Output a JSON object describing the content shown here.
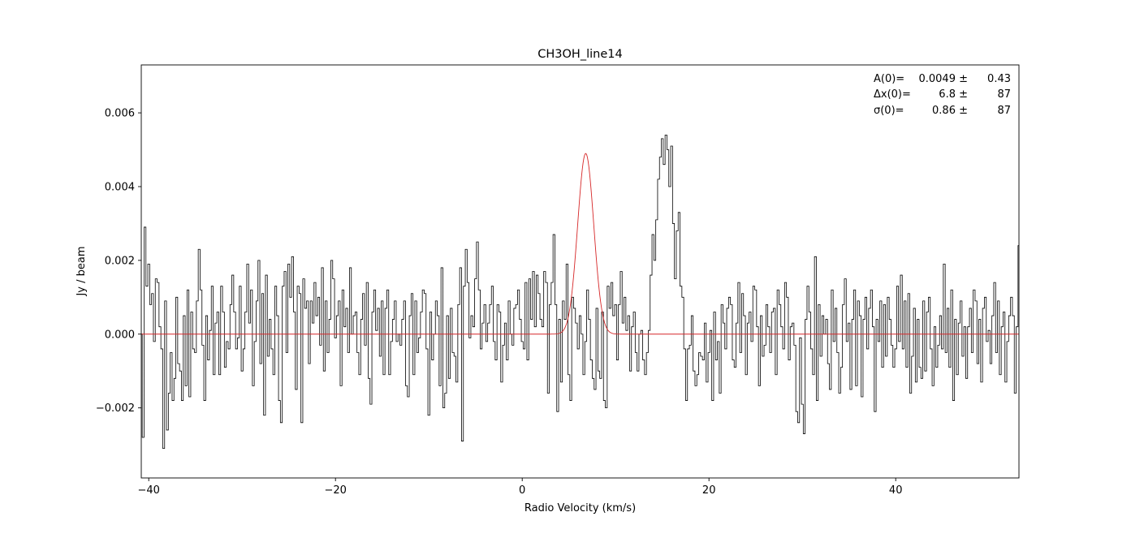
{
  "chart_data": {
    "type": "line",
    "title": "CH3OH_line14",
    "xlabel": "Radio Velocity (km/s)",
    "ylabel": "Jy / beam",
    "xlim": [
      -40.8,
      53.2
    ],
    "ylim": [
      -0.0039,
      0.0073
    ],
    "xticks": [
      -40,
      -20,
      0,
      20,
      40
    ],
    "xtick_labels": [
      "−40",
      "−20",
      "0",
      "20",
      "40"
    ],
    "yticks": [
      -0.002,
      0.0,
      0.002,
      0.004,
      0.006
    ],
    "ytick_labels": [
      "−0.002",
      "0.000",
      "0.002",
      "0.004",
      "0.006"
    ],
    "grid": false,
    "series": [
      {
        "style": "steps-mid",
        "color": "#000000",
        "x_start": -40.8,
        "x_step": 0.2,
        "values": [
          0.0,
          -0.0028,
          0.0029,
          0.0013,
          0.0019,
          0.0008,
          0.0011,
          -0.0002,
          0.0015,
          0.0014,
          0.0002,
          -0.0004,
          -0.0031,
          0.0009,
          -0.0026,
          -0.0016,
          -0.0005,
          -0.0018,
          -0.0012,
          0.001,
          -0.0008,
          -0.001,
          -0.0018,
          0.0005,
          -0.0014,
          0.0012,
          -0.0017,
          0.0006,
          -0.0004,
          -0.0005,
          0.0009,
          0.0023,
          0.0012,
          -0.0003,
          -0.0018,
          0.0005,
          -0.0007,
          0.0001,
          0.0013,
          -0.0011,
          0.0003,
          0.0006,
          -0.0011,
          0.0013,
          0.0006,
          -0.0009,
          -0.0002,
          -0.0004,
          0.0008,
          0.0016,
          0.0006,
          -0.0004,
          -0.0001,
          0.0013,
          -0.001,
          -0.0004,
          0.0006,
          0.0019,
          0.0003,
          0.0012,
          -0.0014,
          -0.0002,
          0.0009,
          0.002,
          -0.0008,
          0.0011,
          -0.0022,
          0.0016,
          -0.0006,
          0.0004,
          -0.0004,
          -0.0011,
          0.0013,
          0.0005,
          -0.0018,
          -0.0024,
          0.0013,
          0.0017,
          -0.0005,
          0.0019,
          0.001,
          0.0021,
          0.0006,
          -0.0015,
          0.0013,
          0.0011,
          -0.0024,
          0.0015,
          0.0007,
          0.0009,
          -0.0008,
          0.0009,
          0.0003,
          0.0014,
          0.0005,
          0.001,
          -0.0003,
          0.0018,
          -0.001,
          0.0009,
          -0.0005,
          0.0004,
          0.002,
          0.0015,
          -0.0001,
          0.0005,
          0.0009,
          -0.0014,
          0.0012,
          0.0002,
          0.0007,
          -0.0005,
          0.0018,
          0.0,
          0.0005,
          0.0006,
          -0.0005,
          -0.0011,
          0.0004,
          0.0011,
          -0.0003,
          0.0014,
          -0.0012,
          -0.0019,
          0.0006,
          0.0012,
          0.0001,
          0.0007,
          -0.0006,
          0.0009,
          -0.0011,
          0.0007,
          0.0012,
          -0.0011,
          -0.0002,
          0.0004,
          0.0009,
          -0.0002,
          0.0,
          -0.0003,
          0.0004,
          0.0009,
          -0.0014,
          -0.0017,
          0.0005,
          0.0011,
          -0.0011,
          0.0009,
          -0.0005,
          -0.0001,
          0.0006,
          0.0012,
          0.0011,
          -0.0004,
          -0.0022,
          0.0006,
          -0.0007,
          0.0,
          0.0009,
          0.0005,
          -0.0014,
          0.0018,
          -0.002,
          -0.0016,
          0.0005,
          -0.0012,
          0.0007,
          -0.0005,
          -0.0006,
          -0.0013,
          0.0008,
          0.0018,
          -0.0029,
          0.0013,
          0.0023,
          0.0014,
          -0.0001,
          0.0005,
          0.0002,
          0.0015,
          0.0025,
          0.0012,
          -0.0004,
          0.0003,
          0.0008,
          -0.0002,
          0.0003,
          0.0008,
          0.0013,
          -0.0002,
          -0.0007,
          0.0008,
          0.0006,
          -0.0013,
          -0.0003,
          0.0003,
          -0.0007,
          0.0009,
          0.0,
          -0.0003,
          0.0007,
          0.0008,
          0.0012,
          0.0004,
          -0.0002,
          -0.0004,
          0.0014,
          -0.0007,
          0.0015,
          0.0004,
          0.0017,
          0.0002,
          0.0016,
          0.0011,
          0.0004,
          0.0002,
          0.0017,
          0.0014,
          -0.0016,
          0.0008,
          0.0014,
          0.0027,
          0.0008,
          -0.0021,
          0.0004,
          -0.0013,
          0.0009,
          0.0004,
          0.0019,
          -0.0011,
          -0.0018,
          0.001,
          0.0007,
          0.0003,
          -0.0004,
          0.0005,
          0.0,
          -0.0011,
          -0.0002,
          0.0012,
          0.0004,
          -0.0007,
          -0.0012,
          -0.0015,
          0.0007,
          -0.001,
          -0.0012,
          0.0006,
          -0.0018,
          -0.002,
          0.0013,
          0.0007,
          0.0014,
          0.0005,
          0.0008,
          -0.0007,
          0.0008,
          0.0017,
          0.0003,
          0.001,
          0.0001,
          0.0005,
          -0.001,
          0.0002,
          0.0006,
          -0.0005,
          -0.001,
          0.0,
          0.0001,
          -0.0007,
          -0.0011,
          -0.0005,
          0.0001,
          0.0016,
          0.0027,
          0.002,
          0.0031,
          0.0042,
          0.0048,
          0.0053,
          0.0046,
          0.0054,
          0.005,
          0.004,
          0.0051,
          0.003,
          0.0015,
          0.0028,
          0.0033,
          0.0013,
          0.001,
          -0.0004,
          -0.0018,
          -0.0004,
          -0.0003,
          0.0005,
          -0.001,
          -0.0014,
          -0.0011,
          -0.0005,
          -0.0006,
          -0.0007,
          0.0003,
          -0.0013,
          -0.0005,
          0.0001,
          -0.0018,
          0.0006,
          -0.0007,
          -0.0002,
          -0.0016,
          0.0008,
          0.0003,
          -0.0004,
          0.0007,
          0.001,
          0.0008,
          -0.0007,
          -0.0009,
          0.0003,
          0.0014,
          -0.0005,
          0.0011,
          0.0005,
          -0.0011,
          0.0003,
          0.0006,
          -0.0002,
          0.0013,
          0.0012,
          0.0002,
          -0.0014,
          0.0005,
          -0.0006,
          -0.0003,
          0.0008,
          0.0002,
          -0.0005,
          0.0006,
          0.0007,
          -0.0011,
          0.0012,
          0.0008,
          0.0002,
          -0.0004,
          0.0014,
          0.001,
          -0.0007,
          0.0002,
          0.0003,
          -0.0003,
          -0.0021,
          -0.0024,
          -0.0001,
          -0.0019,
          -0.0027,
          0.0004,
          0.0013,
          0.0006,
          -0.0004,
          -0.0011,
          0.0021,
          -0.0018,
          0.0008,
          -0.0006,
          0.0005,
          0.0,
          0.0004,
          -0.0008,
          -0.0015,
          0.0012,
          -0.0002,
          0.0007,
          -0.0005,
          -0.0016,
          -0.0009,
          0.0008,
          0.0015,
          -0.0002,
          0.0003,
          -0.0015,
          0.0004,
          0.0012,
          -0.0014,
          0.0009,
          0.0005,
          -0.0017,
          0.0004,
          0.001,
          -0.0004,
          0.0007,
          0.0012,
          0.0002,
          -0.0021,
          0.0004,
          -0.0002,
          0.0009,
          -0.0009,
          0.0008,
          -0.0006,
          0.001,
          0.0004,
          -0.0003,
          -0.0009,
          -0.0004,
          0.0013,
          -0.0002,
          0.0016,
          -0.0004,
          0.0009,
          -0.0009,
          0.0011,
          -0.0016,
          -0.0006,
          0.0007,
          -0.0013,
          0.0004,
          -0.0009,
          -0.0012,
          0.0009,
          -0.001,
          0.0006,
          0.001,
          -0.0004,
          -0.0014,
          0.0002,
          -0.0009,
          -0.0003,
          0.0005,
          -0.0004,
          0.0019,
          -0.0005,
          0.0007,
          -0.0009,
          0.0012,
          -0.0018,
          0.0004,
          -0.0011,
          0.0003,
          0.0009,
          -0.0006,
          0.0002,
          -0.0012,
          0.0002,
          0.0007,
          -0.0005,
          0.0012,
          0.0009,
          -0.0008,
          0.0004,
          -0.0013,
          0.0007,
          0.001,
          -0.0002,
          0.0001,
          -0.0008,
          0.0005,
          0.0014,
          -0.0005,
          0.0009,
          -0.0011,
          0.0002,
          0.0006,
          -0.0013,
          -0.0002,
          0.0005,
          0.001,
          0.0005,
          -0.0016,
          0.0002,
          0.0024,
          0.0011,
          -0.0008,
          -0.0004,
          0.0015,
          0.0006,
          -0.0017,
          0.001,
          -0.0021,
          0.0005,
          0.0009,
          0.0003,
          -0.0005,
          -0.0002,
          0.0007,
          -0.0004,
          0.0,
          0.0005,
          -0.0006,
          0.0006,
          -0.0015,
          0.0013,
          -0.0013,
          0.0006,
          0.0008,
          0.0,
          -0.002,
          0.0009,
          -0.0006,
          0.0011,
          0.0004,
          -0.0009,
          0.0007,
          -0.0012,
          0.0,
          0.0,
          0.0007
        ]
      },
      {
        "name": "Gaussian fit",
        "style": "line",
        "color": "#d62728",
        "function": "gaussian",
        "amplitude": 0.0049,
        "center": 6.8,
        "sigma": 0.86
      }
    ],
    "annotations": [
      {
        "label": "A(0)=",
        "value": "0.0049 ±",
        "error": "0.43"
      },
      {
        "label": "Δx(0)=",
        "value": "6.8 ±",
        "error": "87"
      },
      {
        "label": "σ(0)=",
        "value": "0.86 ±",
        "error": "87"
      }
    ]
  }
}
